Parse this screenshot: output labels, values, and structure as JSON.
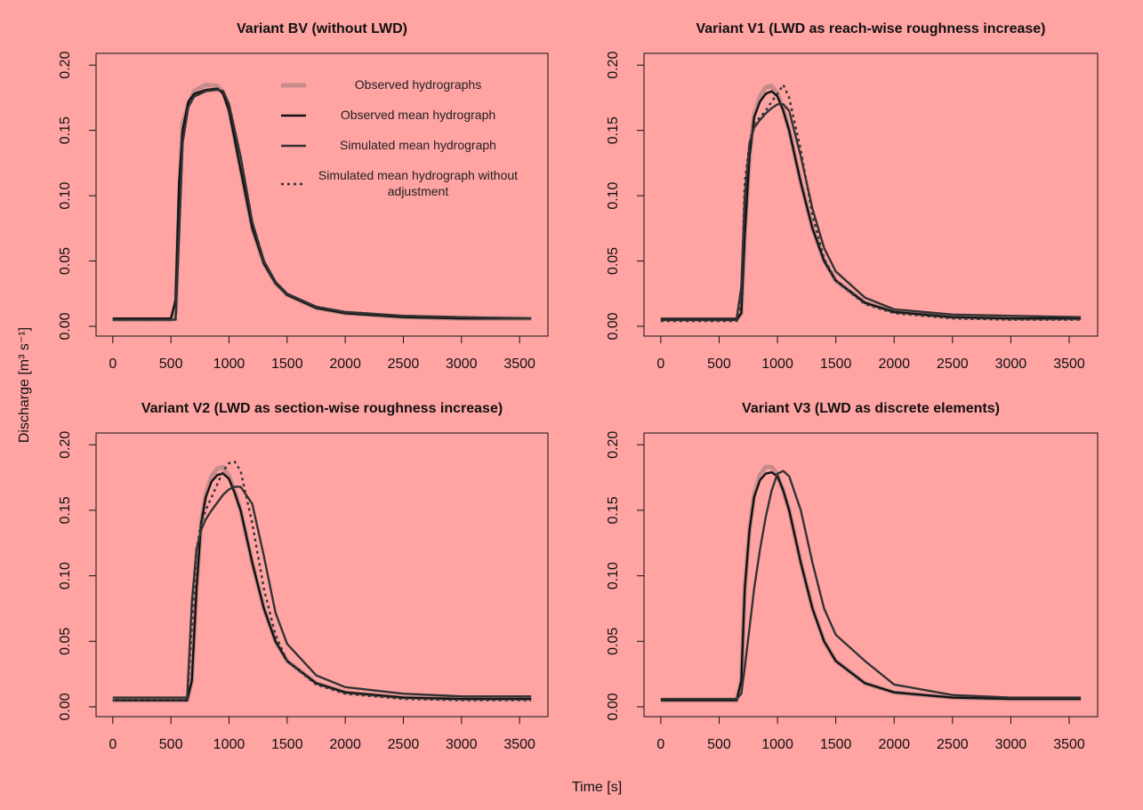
{
  "axis_labels": {
    "y": "Discharge [m³ s⁻¹]",
    "x": "Time [s]"
  },
  "chart_data": [
    {
      "type": "line",
      "title": "Variant BV (without LWD)",
      "legend": "top-right",
      "x": [
        0,
        500,
        540,
        570,
        600,
        650,
        700,
        800,
        900,
        950,
        1000,
        1100,
        1200,
        1300,
        1400,
        1500,
        1750,
        2000,
        2500,
        3000,
        3600
      ],
      "xlim": [
        -144,
        3744
      ],
      "xticks": [
        0,
        500,
        1000,
        1500,
        2000,
        2500,
        3000,
        3500
      ],
      "ylim": [
        -0.0075,
        0.209
      ],
      "yticks": [
        {
          "value": 0,
          "label": "0.00"
        },
        0.05,
        {
          "value": 0.1,
          "label": "0.10"
        },
        0.15,
        {
          "value": 0.2,
          "label": "0.20"
        }
      ],
      "series": [
        {
          "name": "Observed hydrographs",
          "color": "#b88484",
          "line_style": "thick",
          "values": [
            0.005,
            0.005,
            0.01,
            0.09,
            0.155,
            0.17,
            0.18,
            0.185,
            0.184,
            0.179,
            0.166,
            0.12,
            0.075,
            0.048,
            0.033,
            0.024,
            0.014,
            0.01,
            0.007,
            0.006,
            0.006
          ]
        },
        {
          "name": "Observed mean hydrograph",
          "color": "#111111",
          "line_style": "solid",
          "values": [
            0.006,
            0.006,
            0.02,
            0.11,
            0.15,
            0.172,
            0.178,
            0.181,
            0.182,
            0.178,
            0.165,
            0.12,
            0.075,
            0.048,
            0.033,
            0.024,
            0.014,
            0.01,
            0.007,
            0.006,
            0.006
          ]
        },
        {
          "name": "Simulated mean hydrograph",
          "color": "#333333",
          "line_style": "solid",
          "values": [
            0.005,
            0.005,
            0.005,
            0.07,
            0.14,
            0.168,
            0.176,
            0.18,
            0.181,
            0.18,
            0.17,
            0.13,
            0.08,
            0.05,
            0.034,
            0.025,
            0.015,
            0.011,
            0.008,
            0.007,
            0.006
          ]
        },
        {
          "name": "Simulated mean hydrograph without adjustment",
          "color": "#333333",
          "line_style": "dotted",
          "values": [
            0.005,
            0.005,
            0.005,
            0.07,
            0.14,
            0.168,
            0.176,
            0.18,
            0.181,
            0.18,
            0.17,
            0.13,
            0.08,
            0.05,
            0.034,
            0.025,
            0.015,
            0.011,
            0.008,
            0.007,
            0.006
          ]
        }
      ]
    },
    {
      "type": "line",
      "title": "Variant V1 (LWD as reach-wise roughness increase)",
      "x": [
        0,
        650,
        690,
        720,
        760,
        800,
        850,
        900,
        950,
        1000,
        1050,
        1100,
        1200,
        1300,
        1400,
        1500,
        1750,
        2000,
        2500,
        3000,
        3600
      ],
      "xlim": [
        -144,
        3744
      ],
      "xticks": [
        0,
        500,
        1000,
        1500,
        2000,
        2500,
        3000,
        3500
      ],
      "ylim": [
        -0.0075,
        0.209
      ],
      "yticks": [
        {
          "value": 0,
          "label": "0.00"
        },
        0.05,
        {
          "value": 0.1,
          "label": "0.10"
        },
        0.15,
        {
          "value": 0.2,
          "label": "0.20"
        }
      ],
      "series": [
        {
          "name": "Observed hydrographs",
          "color": "#b88484",
          "line_style": "thick",
          "values": [
            0.005,
            0.005,
            0.01,
            0.07,
            0.13,
            0.162,
            0.176,
            0.183,
            0.184,
            0.178,
            0.166,
            0.15,
            0.11,
            0.075,
            0.05,
            0.035,
            0.018,
            0.011,
            0.007,
            0.006,
            0.006
          ]
        },
        {
          "name": "Observed mean hydrograph",
          "color": "#111111",
          "line_style": "solid",
          "values": [
            0.005,
            0.005,
            0.01,
            0.07,
            0.13,
            0.16,
            0.172,
            0.178,
            0.18,
            0.176,
            0.165,
            0.15,
            0.11,
            0.075,
            0.05,
            0.035,
            0.018,
            0.011,
            0.007,
            0.006,
            0.006
          ]
        },
        {
          "name": "Simulated mean hydrograph",
          "color": "#333333",
          "line_style": "solid",
          "values": [
            0.006,
            0.006,
            0.03,
            0.1,
            0.14,
            0.152,
            0.158,
            0.163,
            0.167,
            0.17,
            0.17,
            0.165,
            0.13,
            0.09,
            0.06,
            0.042,
            0.022,
            0.013,
            0.009,
            0.008,
            0.007
          ]
        },
        {
          "name": "Simulated mean hydrograph without adjustment",
          "color": "#333333",
          "line_style": "dotted",
          "values": [
            0.004,
            0.004,
            0.02,
            0.11,
            0.14,
            0.155,
            0.16,
            0.165,
            0.172,
            0.178,
            0.185,
            0.175,
            0.135,
            0.085,
            0.052,
            0.035,
            0.017,
            0.01,
            0.006,
            0.005,
            0.005
          ]
        }
      ]
    },
    {
      "type": "line",
      "title": "Variant V2 (LWD as section-wise roughness increase)",
      "x": [
        0,
        640,
        680,
        720,
        760,
        800,
        850,
        900,
        950,
        1000,
        1050,
        1100,
        1200,
        1300,
        1400,
        1500,
        1750,
        2000,
        2500,
        3000,
        3600
      ],
      "xlim": [
        -144,
        3744
      ],
      "xticks": [
        0,
        500,
        1000,
        1500,
        2000,
        2500,
        3000,
        3500
      ],
      "ylim": [
        -0.0075,
        0.209
      ],
      "yticks": [
        {
          "value": 0,
          "label": "0.00"
        },
        0.05,
        {
          "value": 0.1,
          "label": "0.10"
        },
        0.15,
        {
          "value": 0.2,
          "label": "0.20"
        }
      ],
      "series": [
        {
          "name": "Observed hydrographs",
          "color": "#b88484",
          "line_style": "thick",
          "values": [
            0.005,
            0.005,
            0.02,
            0.09,
            0.14,
            0.162,
            0.176,
            0.182,
            0.183,
            0.176,
            0.164,
            0.15,
            0.11,
            0.075,
            0.05,
            0.035,
            0.018,
            0.011,
            0.007,
            0.006,
            0.006
          ]
        },
        {
          "name": "Observed mean hydrograph",
          "color": "#111111",
          "line_style": "solid",
          "values": [
            0.005,
            0.005,
            0.02,
            0.09,
            0.14,
            0.16,
            0.172,
            0.177,
            0.178,
            0.174,
            0.163,
            0.15,
            0.11,
            0.075,
            0.05,
            0.035,
            0.018,
            0.011,
            0.007,
            0.006,
            0.006
          ]
        },
        {
          "name": "Simulated mean hydrograph",
          "color": "#333333",
          "line_style": "solid",
          "values": [
            0.007,
            0.007,
            0.08,
            0.12,
            0.135,
            0.143,
            0.15,
            0.156,
            0.162,
            0.166,
            0.168,
            0.168,
            0.155,
            0.115,
            0.072,
            0.048,
            0.024,
            0.015,
            0.01,
            0.008,
            0.008
          ]
        },
        {
          "name": "Simulated mean hydrograph without adjustment",
          "color": "#333333",
          "line_style": "dotted",
          "values": [
            0.005,
            0.005,
            0.06,
            0.12,
            0.14,
            0.15,
            0.16,
            0.17,
            0.18,
            0.186,
            0.187,
            0.18,
            0.14,
            0.09,
            0.055,
            0.035,
            0.017,
            0.01,
            0.006,
            0.005,
            0.005
          ]
        }
      ]
    },
    {
      "type": "line",
      "title": "Variant V3 (LWD as discrete elements)",
      "x": [
        0,
        650,
        690,
        720,
        760,
        800,
        850,
        900,
        950,
        1000,
        1050,
        1100,
        1200,
        1300,
        1400,
        1500,
        1750,
        2000,
        2500,
        3000,
        3600
      ],
      "xlim": [
        -144,
        3744
      ],
      "xticks": [
        0,
        500,
        1000,
        1500,
        2000,
        2500,
        3000,
        3500
      ],
      "ylim": [
        -0.0075,
        0.209
      ],
      "yticks": [
        {
          "value": 0,
          "label": "0.00"
        },
        0.05,
        {
          "value": 0.1,
          "label": "0.10"
        },
        0.15,
        {
          "value": 0.2,
          "label": "0.20"
        }
      ],
      "series": [
        {
          "name": "Observed hydrographs",
          "color": "#b88484",
          "line_style": "thick",
          "values": [
            0.005,
            0.005,
            0.02,
            0.09,
            0.135,
            0.162,
            0.177,
            0.183,
            0.183,
            0.177,
            0.165,
            0.15,
            0.11,
            0.075,
            0.05,
            0.035,
            0.018,
            0.011,
            0.007,
            0.006,
            0.006
          ]
        },
        {
          "name": "Observed mean hydrograph",
          "color": "#111111",
          "line_style": "solid",
          "values": [
            0.005,
            0.005,
            0.02,
            0.09,
            0.135,
            0.16,
            0.173,
            0.178,
            0.179,
            0.176,
            0.165,
            0.15,
            0.11,
            0.075,
            0.05,
            0.035,
            0.018,
            0.011,
            0.007,
            0.006,
            0.006
          ]
        },
        {
          "name": "Simulated mean hydrograph",
          "color": "#333333",
          "line_style": "solid",
          "values": [
            0.006,
            0.006,
            0.01,
            0.03,
            0.06,
            0.09,
            0.12,
            0.145,
            0.165,
            0.178,
            0.18,
            0.176,
            0.15,
            0.11,
            0.075,
            0.055,
            0.035,
            0.017,
            0.009,
            0.007,
            0.007
          ]
        }
      ]
    }
  ]
}
